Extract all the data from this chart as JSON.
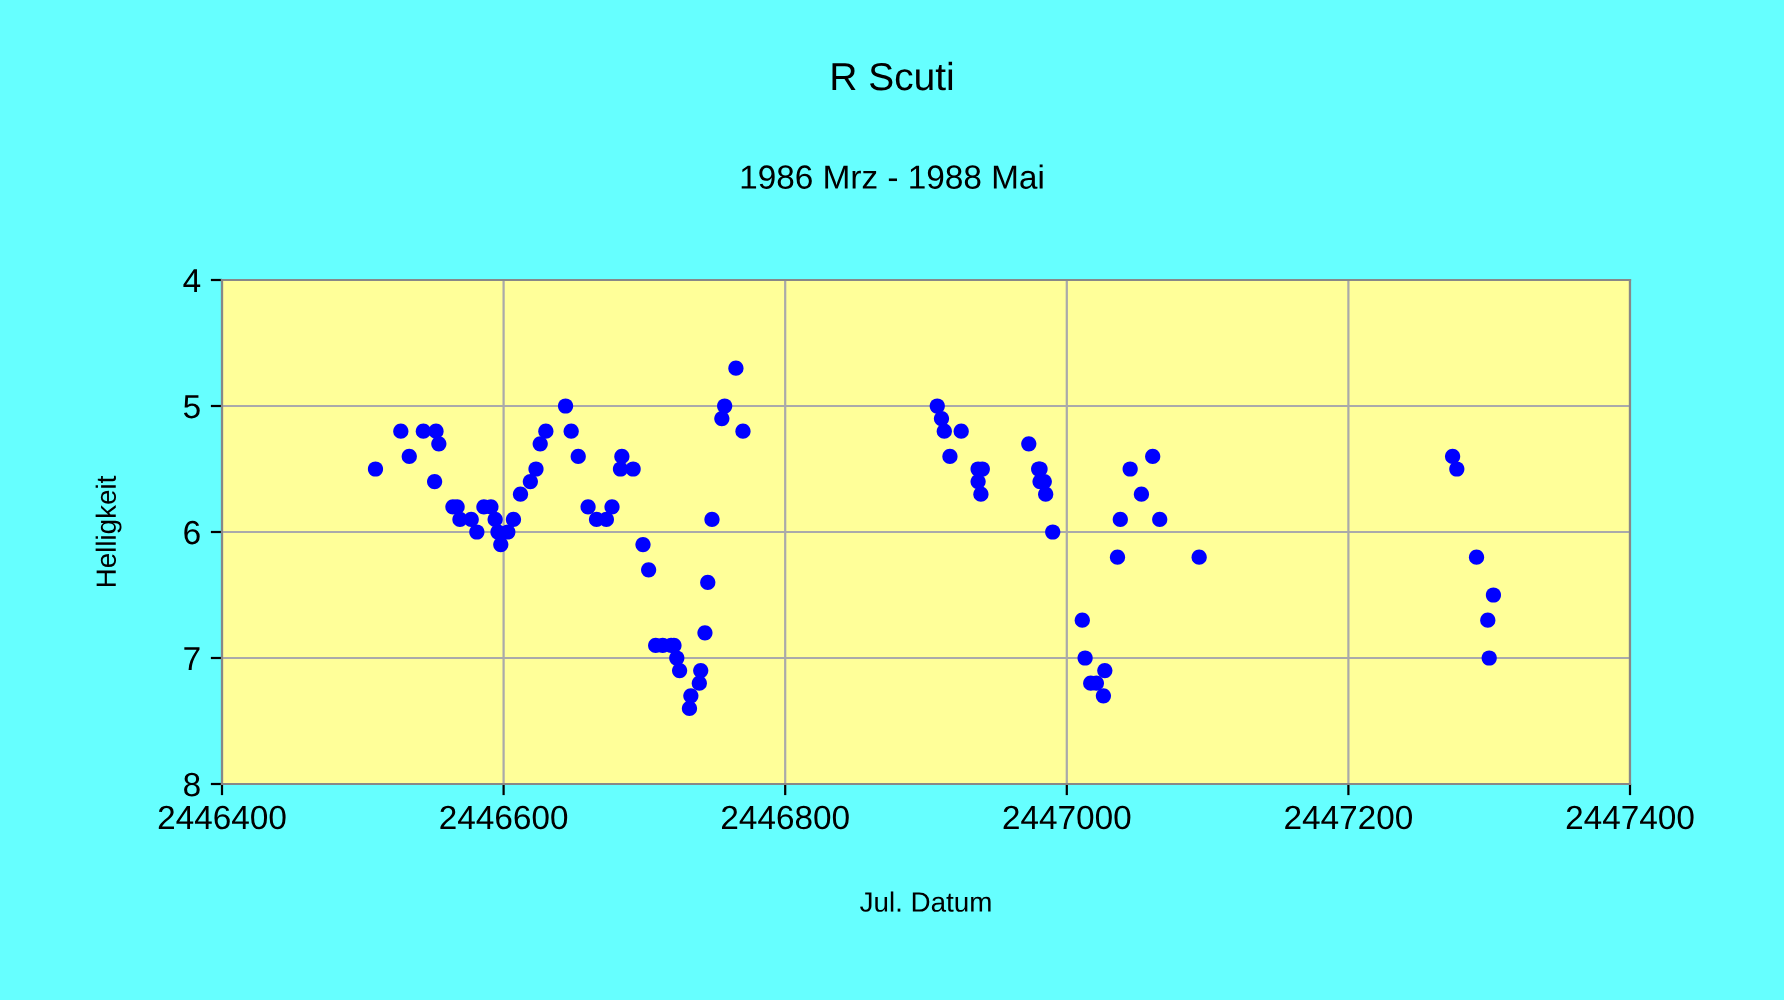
{
  "chart_data": {
    "type": "scatter",
    "title": "R Scuti",
    "subtitle": "1986 Mrz - 1988 Mai",
    "xlabel": "Jul. Datum",
    "ylabel": "Helligkeit",
    "x": [
      2446509,
      2446527,
      2446533,
      2446543,
      2446552,
      2446554,
      2446551,
      2446564,
      2446567,
      2446569,
      2446577,
      2446581,
      2446586,
      2446591,
      2446594,
      2446596,
      2446598,
      2446603,
      2446607,
      2446612,
      2446619,
      2446623,
      2446626,
      2446630,
      2446644,
      2446648,
      2446653,
      2446660,
      2446666,
      2446673,
      2446677,
      2446684,
      2446683,
      2446692,
      2446699,
      2446703,
      2446708,
      2446713,
      2446719,
      2446721,
      2446723,
      2446725,
      2446733,
      2446732,
      2446739,
      2446740,
      2446743,
      2446745,
      2446748,
      2446755,
      2446757,
      2446765,
      2446770,
      2446908,
      2446911,
      2446913,
      2446925,
      2446917,
      2446937,
      2446940,
      2446937,
      2446939,
      2446973,
      2446980,
      2446981,
      2446981,
      2446984,
      2446985,
      2446990,
      2447011,
      2447013,
      2447027,
      2447017,
      2447021,
      2447026,
      2447036,
      2447038,
      2447045,
      2447061,
      2447053,
      2447066,
      2447094,
      2447274,
      2447277,
      2447291,
      2447303,
      2447299,
      2447300
    ],
    "values": [
      5.5,
      5.2,
      5.4,
      5.2,
      5.2,
      5.3,
      5.6,
      5.8,
      5.8,
      5.9,
      5.9,
      6.0,
      5.8,
      5.8,
      5.9,
      6.0,
      6.1,
      6.0,
      5.9,
      5.7,
      5.6,
      5.5,
      5.3,
      5.2,
      5.0,
      5.2,
      5.4,
      5.8,
      5.9,
      5.9,
      5.8,
      5.4,
      5.5,
      5.5,
      6.1,
      6.3,
      6.9,
      6.9,
      6.9,
      6.9,
      7.0,
      7.1,
      7.3,
      7.4,
      7.2,
      7.1,
      6.8,
      6.4,
      5.9,
      5.1,
      5.0,
      4.7,
      5.2,
      5.0,
      5.1,
      5.2,
      5.2,
      5.4,
      5.5,
      5.5,
      5.6,
      5.7,
      5.3,
      5.5,
      5.5,
      5.6,
      5.6,
      5.7,
      6.0,
      6.7,
      7.0,
      7.1,
      7.2,
      7.2,
      7.3,
      6.2,
      5.9,
      5.5,
      5.4,
      5.7,
      5.9,
      6.2,
      5.4,
      5.5,
      6.2,
      6.5,
      6.7,
      7.0
    ],
    "color": "#0000ff",
    "marker": "circle",
    "xlim": [
      2446400,
      2447400
    ],
    "xticks": [
      2446400,
      2446600,
      2446800,
      2447000,
      2447200,
      2447400
    ],
    "ylim": [
      8,
      4
    ],
    "yticks": [
      4,
      5,
      6,
      7,
      8
    ],
    "grid": true,
    "legend": false
  }
}
